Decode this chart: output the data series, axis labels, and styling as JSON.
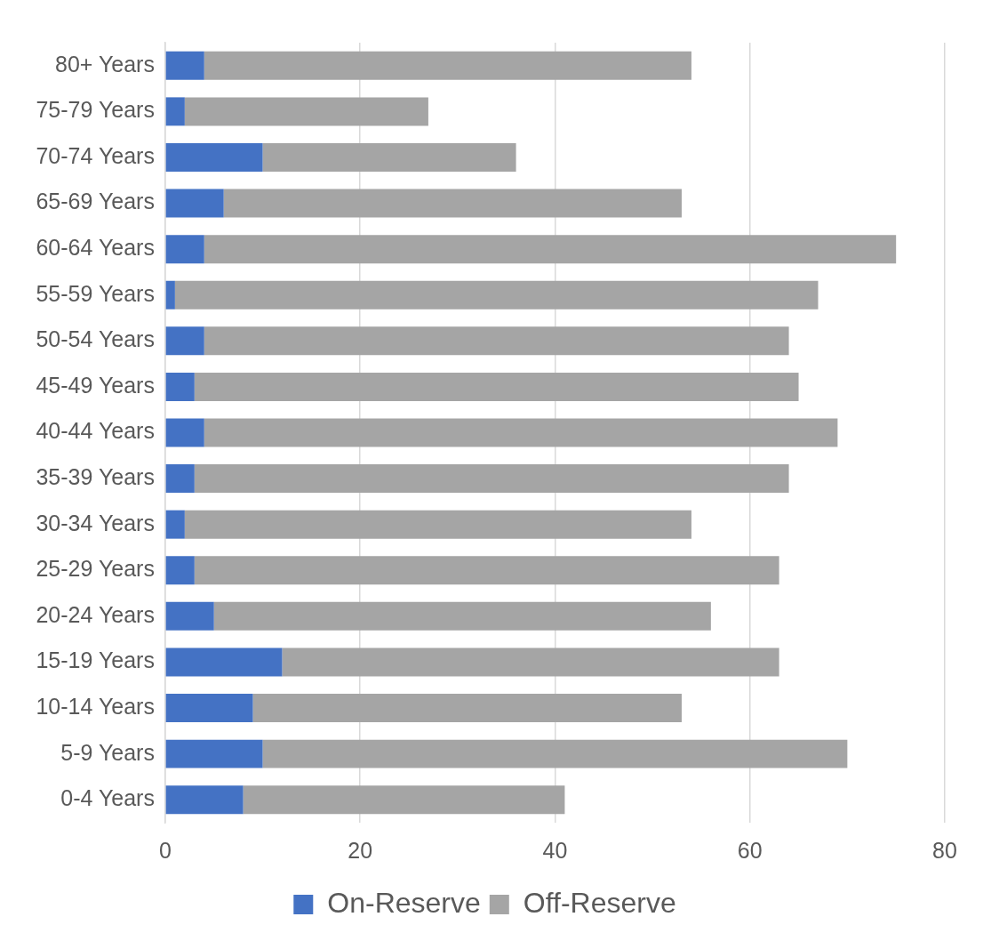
{
  "chart_data": {
    "type": "bar",
    "orientation": "horizontal",
    "stacked": true,
    "categories": [
      "80+ Years",
      "75-79 Years",
      "70-74 Years",
      "65-69 Years",
      "60-64 Years",
      "55-59 Years",
      "50-54 Years",
      "45-49 Years",
      "40-44 Years",
      "35-39 Years",
      "30-34 Years",
      "25-29 Years",
      "20-24 Years",
      "15-19 Years",
      "10-14 Years",
      "5-9 Years",
      "0-4 Years"
    ],
    "series": [
      {
        "name": "On-Reserve",
        "color": "#4472c4",
        "values": [
          4,
          2,
          10,
          6,
          4,
          1,
          4,
          3,
          4,
          3,
          2,
          3,
          5,
          12,
          9,
          10,
          8
        ]
      },
      {
        "name": "Off-Reserve",
        "color": "#a5a5a5",
        "values": [
          50,
          25,
          26,
          47,
          71,
          66,
          60,
          62,
          65,
          61,
          52,
          60,
          51,
          51,
          44,
          60,
          33
        ]
      }
    ],
    "xlim": [
      0,
      80
    ],
    "xticks": [
      0,
      20,
      40,
      60,
      80
    ],
    "grid": "x",
    "legend": "bottom"
  }
}
